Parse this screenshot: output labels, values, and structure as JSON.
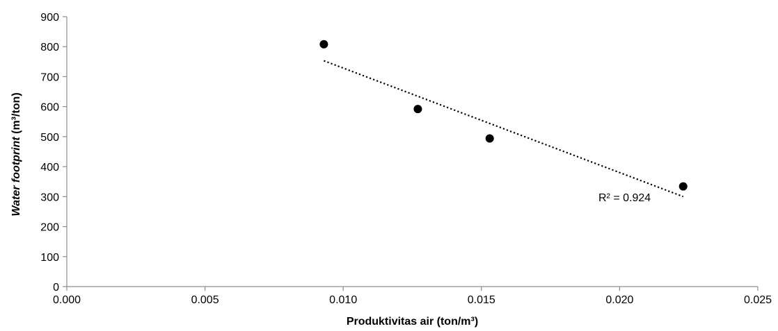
{
  "chart_data": {
    "type": "scatter",
    "xlabel": "Produktivitas air (ton/m³)",
    "ylabel_italic": "Water footprint",
    "ylabel_rest": " (m³/ton)",
    "xlim": [
      0,
      0.025
    ],
    "ylim": [
      0,
      900
    ],
    "x_ticks": [
      0,
      0.005,
      0.01,
      0.015,
      0.02,
      0.025
    ],
    "x_tick_labels": [
      "0.000",
      "0.005",
      "0.010",
      "0.015",
      "0.020",
      "0.025"
    ],
    "y_ticks": [
      0,
      100,
      200,
      300,
      400,
      500,
      600,
      700,
      800,
      900
    ],
    "y_tick_labels": [
      "0",
      "100",
      "200",
      "300",
      "400",
      "500",
      "600",
      "700",
      "800",
      "900"
    ],
    "grid": false,
    "legend": "none",
    "series": [
      {
        "points": [
          {
            "x": 0.0093,
            "y": 808
          },
          {
            "x": 0.0127,
            "y": 592
          },
          {
            "x": 0.0153,
            "y": 494
          },
          {
            "x": 0.0223,
            "y": 334
          }
        ],
        "color": "#000000"
      }
    ],
    "trendline": {
      "type": "linear",
      "style": "dotted",
      "from": {
        "x": 0.0093,
        "y": 753
      },
      "to": {
        "x": 0.0223,
        "y": 300
      },
      "r_squared_label": "R² = 0.924"
    }
  }
}
